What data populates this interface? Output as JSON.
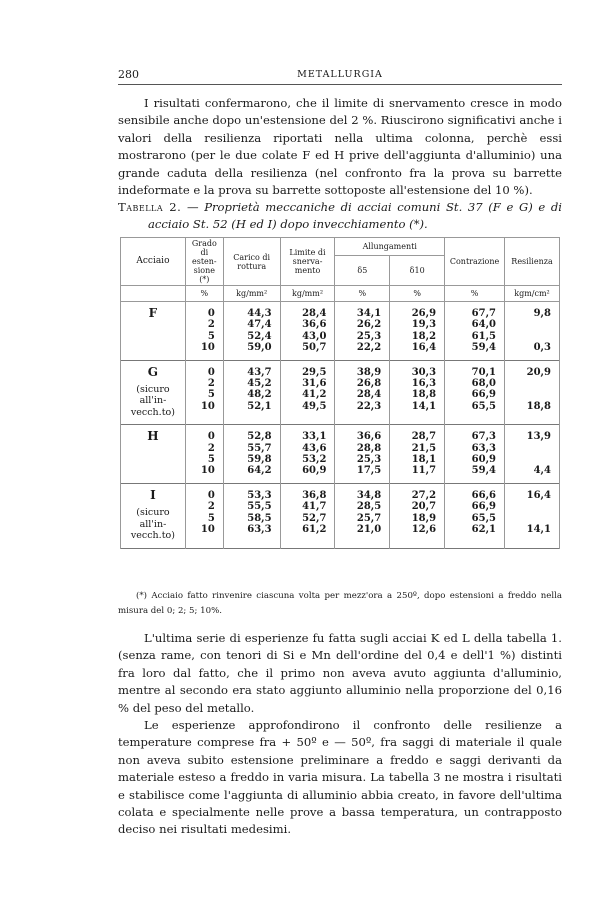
{
  "header": {
    "page_number": "280",
    "running_title": "METALLURGIA"
  },
  "paragraph1": "I risultati confermarono, che il limite di snervamento cresce in modo sensibile anche dopo un'estensione del 2 %. Riuscirono significativi anche i valori della resilienza riportati nella ultima colonna, perchè essi mostrarono (per le due colate F ed H prive dell'aggiunta d'alluminio) una grande caduta della resilienza (nel confronto fra la prova su barrette indeformate e la prova su barrette sottoposte all'estensione del 10 %).",
  "caption": {
    "label": "Tabella 2.",
    "text": "— Proprietà meccaniche di acciai comuni St. 37 (F e G) e di acciaio St. 52 (H ed I) dopo invecchiamento (*)."
  },
  "table": {
    "headers": {
      "acciaio": "Acciaio",
      "grado": "Grado di esten-sione (*)",
      "carico": "Carico di rottura",
      "limite": "Limite di snerva-mento",
      "allungamenti": "Allungamenti",
      "d5": "δ5",
      "d10": "δ10",
      "contrazione": "Contrazione",
      "resilienza": "Resilienza"
    },
    "units": [
      "%",
      "kg/mm²",
      "kg/mm²",
      "%",
      "%",
      "%",
      "kgm/cm²"
    ],
    "groups": [
      {
        "steel": "F",
        "note": "",
        "rows": [
          [
            "0",
            "44,3",
            "28,4",
            "34,1",
            "26,9",
            "67,7",
            "9,8"
          ],
          [
            "2",
            "47,4",
            "36,6",
            "26,2",
            "19,3",
            "64,0",
            ""
          ],
          [
            "5",
            "52,4",
            "43,0",
            "25,3",
            "18,2",
            "61,5",
            ""
          ],
          [
            "10",
            "59,0",
            "50,7",
            "22,2",
            "16,4",
            "59,4",
            "0,3"
          ]
        ]
      },
      {
        "steel": "G",
        "note": "(sicuro all'in-vecch.to)",
        "rows": [
          [
            "0",
            "43,7",
            "29,5",
            "38,9",
            "30,3",
            "70,1",
            "20,9"
          ],
          [
            "2",
            "45,2",
            "31,6",
            "26,8",
            "16,3",
            "68,0",
            ""
          ],
          [
            "5",
            "48,2",
            "41,2",
            "28,4",
            "18,8",
            "66,9",
            ""
          ],
          [
            "10",
            "52,1",
            "49,5",
            "22,3",
            "14,1",
            "65,5",
            "18,8"
          ]
        ]
      },
      {
        "steel": "H",
        "note": "",
        "rows": [
          [
            "0",
            "52,8",
            "33,1",
            "36,6",
            "28,7",
            "67,3",
            "13,9"
          ],
          [
            "2",
            "55,7",
            "43,6",
            "28,8",
            "21,5",
            "63,3",
            ""
          ],
          [
            "5",
            "59,8",
            "53,2",
            "25,3",
            "18,1",
            "60,9",
            ""
          ],
          [
            "10",
            "64,2",
            "60,9",
            "17,5",
            "11,7",
            "59,4",
            "4,4"
          ]
        ]
      },
      {
        "steel": "I",
        "note": "(sicuro all'in-vecch.to)",
        "rows": [
          [
            "0",
            "53,3",
            "36,8",
            "34,8",
            "27,2",
            "66,6",
            "16,4"
          ],
          [
            "2",
            "55,5",
            "41,7",
            "28,5",
            "20,7",
            "66,9",
            ""
          ],
          [
            "5",
            "58,5",
            "52,7",
            "25,7",
            "18,9",
            "65,5",
            ""
          ],
          [
            "10",
            "63,3",
            "61,2",
            "21,0",
            "12,6",
            "62,1",
            "14,1"
          ]
        ]
      }
    ]
  },
  "footnote": "(*) Acciaio fatto rinvenire ciascuna volta per mezz'ora a 250º, dopo estensioni a freddo nella misura del 0; 2; 5; 10%.",
  "paragraph2": "L'ultima serie di esperienze fu fatta sugli acciai K ed L della tabella 1. (senza rame, con tenori di Si e Mn dell'ordine del 0,4 e dell'1 %) distinti fra loro dal fatto, che il primo non aveva avuto aggiunta d'alluminio, mentre al secondo era stato aggiunto alluminio nella proporzione del 0,16 % del peso del metallo.",
  "paragraph3": "Le esperienze approfondirono il confronto delle resilienze a temperature comprese fra + 50º e — 50º, fra saggi di materiale il quale non aveva subito estensione preliminare a freddo e saggi derivanti da materiale esteso a freddo in varia misura. La tabella 3 ne mostra i risultati e stabilisce come l'aggiunta di alluminio abbia creato, in favore dell'ultima colata e specialmente nelle prove a bassa temperatura, un contrapposto deciso nei risultati medesimi."
}
